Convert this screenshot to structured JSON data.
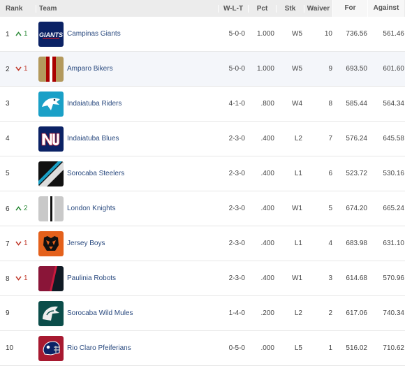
{
  "headers": {
    "rank": "Rank",
    "team": "Team",
    "wlt": "W-L-T",
    "pct": "Pct",
    "stk": "Stk",
    "waiver": "Waiver",
    "for": "For",
    "against": "Against"
  },
  "rows": [
    {
      "rank": "1",
      "move": "up",
      "move_val": "1",
      "team": "Campinas Giants",
      "logo": "giants-logo",
      "wlt": "5-0-0",
      "pct": "1.000",
      "stk": "W5",
      "waiver": "10",
      "for": "736.56",
      "against": "561.46"
    },
    {
      "rank": "2",
      "move": "down",
      "move_val": "1",
      "team": "Amparo Bikers",
      "logo": "bikers-logo",
      "wlt": "5-0-0",
      "pct": "1.000",
      "stk": "W5",
      "waiver": "9",
      "for": "693.50",
      "against": "601.60"
    },
    {
      "rank": "3",
      "move": "",
      "move_val": "",
      "team": "Indaiatuba Riders",
      "logo": "riders-logo",
      "wlt": "4-1-0",
      "pct": ".800",
      "stk": "W4",
      "waiver": "8",
      "for": "585.44",
      "against": "564.34"
    },
    {
      "rank": "4",
      "move": "",
      "move_val": "",
      "team": "Indaiatuba Blues",
      "logo": "blues-logo",
      "wlt": "2-3-0",
      "pct": ".400",
      "stk": "L2",
      "waiver": "7",
      "for": "576.24",
      "against": "645.58"
    },
    {
      "rank": "5",
      "move": "",
      "move_val": "",
      "team": "Sorocaba Steelers",
      "logo": "steelers-logo",
      "wlt": "2-3-0",
      "pct": ".400",
      "stk": "L1",
      "waiver": "6",
      "for": "523.72",
      "against": "530.16"
    },
    {
      "rank": "6",
      "move": "up",
      "move_val": "2",
      "team": "London Knights",
      "logo": "knights-logo",
      "wlt": "2-3-0",
      "pct": ".400",
      "stk": "W1",
      "waiver": "5",
      "for": "674.20",
      "against": "665.24"
    },
    {
      "rank": "7",
      "move": "down",
      "move_val": "1",
      "team": "Jersey Boys",
      "logo": "jersey-logo",
      "wlt": "2-3-0",
      "pct": ".400",
      "stk": "L1",
      "waiver": "4",
      "for": "683.98",
      "against": "631.10"
    },
    {
      "rank": "8",
      "move": "down",
      "move_val": "1",
      "team": "Paulinia Robots",
      "logo": "robots-logo",
      "wlt": "2-3-0",
      "pct": ".400",
      "stk": "W1",
      "waiver": "3",
      "for": "614.68",
      "against": "570.96"
    },
    {
      "rank": "9",
      "move": "",
      "move_val": "",
      "team": "Sorocaba Wild Mules",
      "logo": "mules-logo",
      "wlt": "1-4-0",
      "pct": ".200",
      "stk": "L2",
      "waiver": "2",
      "for": "617.06",
      "against": "740.34"
    },
    {
      "rank": "10",
      "move": "",
      "move_val": "",
      "team": "Rio Claro Pfeiferians",
      "logo": "pfeiferians-logo",
      "wlt": "0-5-0",
      "pct": ".000",
      "stk": "L5",
      "waiver": "1",
      "for": "516.02",
      "against": "710.62"
    }
  ],
  "logo_text": {
    "giants": "GIANTS"
  },
  "colors": {
    "up": "#2e8b3a",
    "down": "#c0392b",
    "team_link": "#2a4a7f",
    "alt_row": "#f4f6fa",
    "header_bg": "#ececec"
  }
}
